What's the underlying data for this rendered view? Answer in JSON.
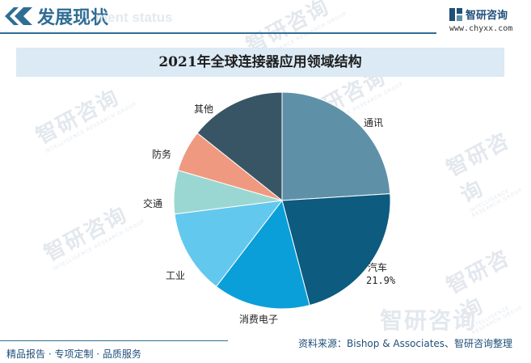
{
  "header": {
    "title": "发展现状",
    "subtitle": "ment status",
    "logo_text": "智研咨询",
    "logo_url": "www.chyxx.com"
  },
  "chart_data": {
    "type": "pie",
    "title": "2021年全球连接器应用领域结构",
    "slices": [
      {
        "label": "通讯",
        "value": 24.0,
        "color": "#5e91a8"
      },
      {
        "label": "汽车",
        "value": 21.9,
        "value_label": "21.9%",
        "color": "#0d5b7e"
      },
      {
        "label": "消费电子",
        "value": 14.5,
        "color": "#0a9fd8"
      },
      {
        "label": "工业",
        "value": 12.6,
        "color": "#63c8ee"
      },
      {
        "label": "交通",
        "value": 6.5,
        "color": "#9bd7d2"
      },
      {
        "label": "防务",
        "value": 6.2,
        "color": "#ef9a80"
      },
      {
        "label": "其他",
        "value": 14.3,
        "color": "#385566"
      }
    ],
    "start": "12 o'clock",
    "direction": "clockwise"
  },
  "footer": {
    "tagline": "精品报告 · 专项定制 · 品质服务",
    "source": "资料来源：Bishop & Associates、智研咨询整理"
  },
  "watermark": {
    "text": "智研咨询",
    "sub": "INTELLIGENCE RESEARCH GROUP"
  }
}
